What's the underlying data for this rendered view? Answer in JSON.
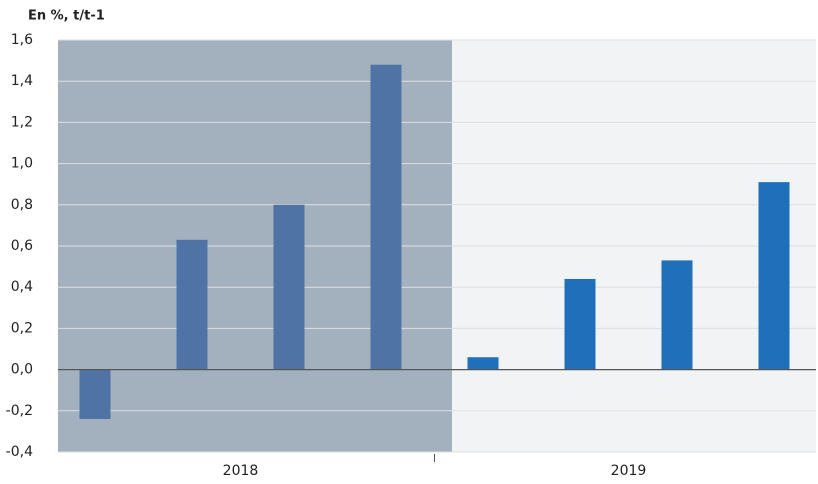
{
  "chart_data": {
    "type": "bar",
    "y_axis_label": "En %, t/t-1",
    "categories": [
      null,
      null,
      null,
      null,
      null,
      null,
      null,
      null
    ],
    "groups": [
      "2018",
      "2019"
    ],
    "values": [
      -0.24,
      0.63,
      0.8,
      1.48,
      0.06,
      0.44,
      0.53,
      0.91
    ],
    "colors": [
      "#4f73a5",
      "#4f73a5",
      "#4f73a5",
      "#4f73a5",
      "#1f6fba",
      "#1f6fba",
      "#1f6fba",
      "#1f6fba"
    ],
    "ylim": [
      -0.4,
      1.6
    ],
    "yticks": [
      {
        "value": -0.4,
        "label": "-0,4"
      },
      {
        "value": -0.2,
        "label": "-0,2"
      },
      {
        "value": 0,
        "label": "0,0"
      },
      {
        "value": 0.2,
        "label": "0,2"
      },
      {
        "value": 0.4,
        "label": "0,4"
      },
      {
        "value": 0.6,
        "label": "0,6"
      },
      {
        "value": 0.8,
        "label": "0,8"
      },
      {
        "value": 1.0,
        "label": "1,0"
      },
      {
        "value": 1.2,
        "label": "1,2"
      },
      {
        "value": 1.4,
        "label": "1,4"
      },
      {
        "value": 1.6,
        "label": "1,6"
      }
    ],
    "grid": true
  }
}
